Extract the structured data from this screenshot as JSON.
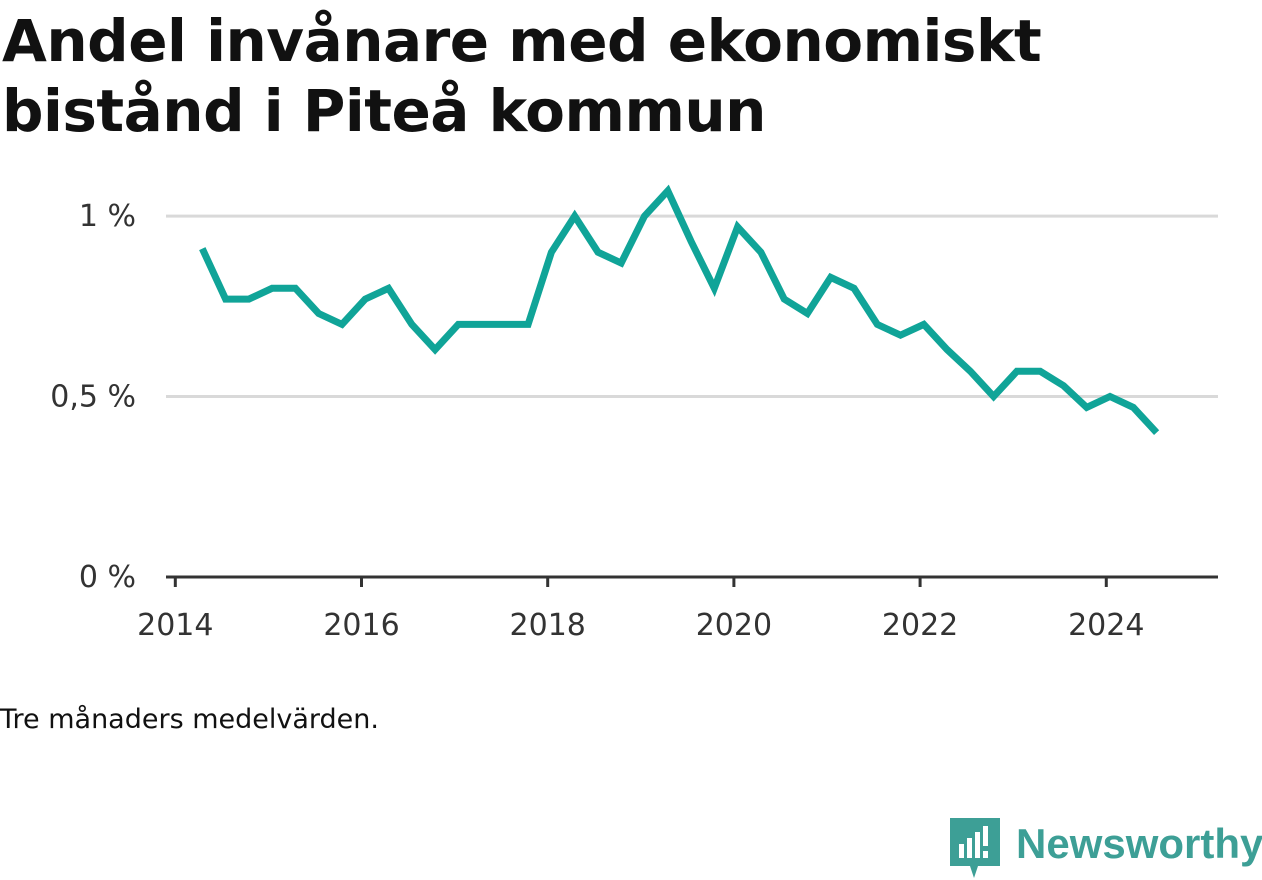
{
  "title": "Andel invånare med ekonomiskt bistånd i Piteå kommun",
  "caption": "Tre månaders medelvärden.",
  "brand": {
    "name": "Newsworthy",
    "icon": "newsworthy-logo-icon",
    "color": "#3d9f96"
  },
  "chart_data": {
    "type": "line",
    "title": "Andel invånare med ekonomiskt bistånd i Piteå kommun",
    "xlabel": "",
    "ylabel": "",
    "xlim": [
      2013.9,
      2025.2
    ],
    "ylim": [
      0,
      1.1
    ],
    "grid": true,
    "legend": "none",
    "line_color": "#10a498",
    "x_ticks": [
      2014,
      2016,
      2018,
      2020,
      2022,
      2024
    ],
    "x_tick_labels": [
      "2014",
      "2016",
      "2018",
      "2020",
      "2022",
      "2024"
    ],
    "y_ticks": [
      0,
      0.5,
      1
    ],
    "y_tick_labels": [
      "0 %",
      "0,5 %",
      "1 %"
    ],
    "series": [
      {
        "x": [
          2014.29,
          2014.54,
          2014.79,
          2015.04,
          2015.29,
          2015.54,
          2015.79,
          2016.04,
          2016.29,
          2016.54,
          2016.79,
          2017.04,
          2017.29,
          2017.54,
          2017.79,
          2018.04,
          2018.29,
          2018.54,
          2018.79,
          2019.04,
          2019.29,
          2019.54,
          2019.79,
          2020.04,
          2020.29,
          2020.54,
          2020.79,
          2021.04,
          2021.29,
          2021.54,
          2021.79,
          2022.04,
          2022.29,
          2022.54,
          2022.79,
          2023.04,
          2023.29,
          2023.54,
          2023.79,
          2024.04,
          2024.29,
          2024.54
        ],
        "values": [
          0.91,
          0.77,
          0.77,
          0.8,
          0.8,
          0.73,
          0.7,
          0.77,
          0.8,
          0.7,
          0.63,
          0.7,
          0.7,
          0.7,
          0.7,
          0.9,
          1.0,
          0.9,
          0.87,
          1.0,
          1.07,
          0.93,
          0.8,
          0.97,
          0.9,
          0.77,
          0.73,
          0.83,
          0.8,
          0.7,
          0.67,
          0.7,
          0.63,
          0.57,
          0.5,
          0.57,
          0.57,
          0.53,
          0.47,
          0.5,
          0.47,
          0.4
        ]
      }
    ]
  }
}
